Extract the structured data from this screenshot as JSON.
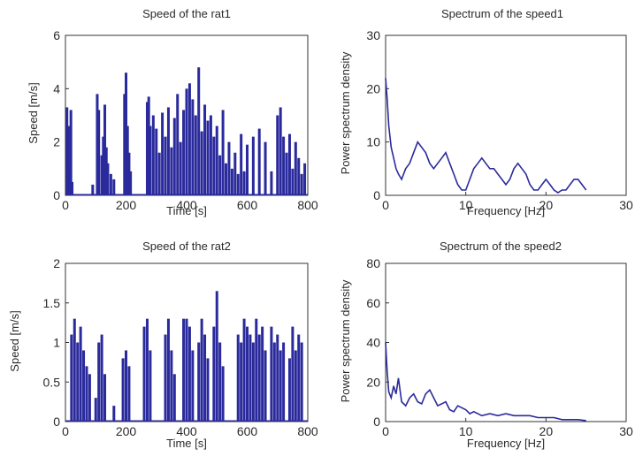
{
  "chart_data": [
    {
      "type": "bar",
      "title": "Speed of the rat1",
      "xlabel": "Time [s]",
      "ylabel": "Speed [m/s]",
      "xlim": [
        0,
        800
      ],
      "ylim": [
        0,
        6
      ],
      "xticks": [
        0,
        200,
        400,
        600,
        800
      ],
      "yticks": [
        0,
        2,
        4,
        6
      ],
      "color": "#2a2a9c",
      "series": [
        {
          "x": [
            5,
            10,
            12,
            18,
            22,
            90,
            105,
            110,
            120,
            125,
            130,
            135,
            140,
            150,
            160,
            195,
            200,
            205,
            210,
            215,
            270,
            275,
            280,
            290,
            300,
            310,
            320,
            330,
            340,
            350,
            360,
            370,
            380,
            390,
            400,
            410,
            420,
            430,
            440,
            450,
            460,
            470,
            480,
            490,
            500,
            510,
            520,
            530,
            540,
            550,
            560,
            570,
            580,
            590,
            600,
            620,
            640,
            660,
            680,
            700,
            710,
            720,
            730,
            740,
            750,
            760,
            770,
            780,
            790
          ],
          "values": [
            3.3,
            2.6,
            1.0,
            3.2,
            0.5,
            0.4,
            3.8,
            3.2,
            1.5,
            2.2,
            3.4,
            1.8,
            1.2,
            0.8,
            0.6,
            3.8,
            4.6,
            2.6,
            1.6,
            0.9,
            3.5,
            3.7,
            2.6,
            3.0,
            2.5,
            1.6,
            3.1,
            2.2,
            3.3,
            1.8,
            2.9,
            3.8,
            2.0,
            3.2,
            4.0,
            4.2,
            3.6,
            3.0,
            4.8,
            2.4,
            3.4,
            2.8,
            3.0,
            2.2,
            2.6,
            1.5,
            3.2,
            1.2,
            2.0,
            1.0,
            1.6,
            0.8,
            2.3,
            0.9,
            1.9,
            2.2,
            2.5,
            2.0,
            0.9,
            3.0,
            3.3,
            2.2,
            1.6,
            2.3,
            1.0,
            2.0,
            1.4,
            0.8,
            1.2
          ]
        }
      ]
    },
    {
      "type": "line",
      "title": "Spectrum of the speed1",
      "xlabel": "Frequency [Hz]",
      "ylabel": "Power spectrum density",
      "xlim": [
        0,
        30
      ],
      "ylim": [
        0,
        30
      ],
      "xticks": [
        0,
        10,
        20,
        30
      ],
      "yticks": [
        0,
        10,
        20,
        30
      ],
      "color": "#2a2a9c",
      "series": [
        {
          "x": [
            0,
            0.2,
            0.4,
            0.7,
            1,
            1.3,
            1.6,
            2,
            2.5,
            3,
            3.5,
            4,
            4.5,
            5,
            5.5,
            6,
            6.5,
            7,
            7.5,
            8,
            8.5,
            9,
            9.5,
            10,
            10.5,
            11,
            11.5,
            12,
            12.5,
            13,
            13.5,
            14,
            14.5,
            15,
            15.5,
            16,
            16.5,
            17,
            17.5,
            18,
            18.5,
            19,
            19.5,
            20,
            20.5,
            21,
            21.5,
            22,
            22.5,
            23,
            23.5,
            24,
            24.5,
            25
          ],
          "values": [
            22,
            18,
            13,
            9,
            7,
            5,
            4,
            3,
            5,
            6,
            8,
            10,
            9,
            8,
            6,
            5,
            6,
            7,
            8,
            6,
            4,
            2,
            1,
            1,
            3,
            5,
            6,
            7,
            6,
            5,
            5,
            4,
            3,
            2,
            3,
            5,
            6,
            5,
            4,
            2,
            1,
            1,
            2,
            3,
            2,
            1,
            0.5,
            1,
            1,
            2,
            3,
            3,
            2,
            1
          ]
        }
      ]
    },
    {
      "type": "bar",
      "title": "Speed of the rat2",
      "xlabel": "Time [s]",
      "ylabel": "Speed [m/s]",
      "xlim": [
        0,
        800
      ],
      "ylim": [
        0,
        2
      ],
      "xticks": [
        0,
        200,
        400,
        600,
        800
      ],
      "yticks": [
        0,
        0.5,
        1,
        1.5,
        2
      ],
      "color": "#2a2a9c",
      "series": [
        {
          "x": [
            20,
            30,
            40,
            50,
            60,
            70,
            80,
            100,
            110,
            120,
            130,
            160,
            190,
            200,
            210,
            260,
            270,
            280,
            330,
            340,
            350,
            360,
            390,
            400,
            410,
            420,
            440,
            450,
            460,
            470,
            490,
            500,
            510,
            520,
            570,
            580,
            590,
            600,
            610,
            620,
            630,
            640,
            650,
            660,
            680,
            690,
            700,
            710,
            720,
            740,
            750,
            760,
            770,
            780
          ],
          "values": [
            1.1,
            1.3,
            1.0,
            1.2,
            0.9,
            0.7,
            0.6,
            0.3,
            1.0,
            1.1,
            0.6,
            0.2,
            0.8,
            0.9,
            0.7,
            1.2,
            1.3,
            0.9,
            1.1,
            1.3,
            0.9,
            0.6,
            1.3,
            1.3,
            1.2,
            0.9,
            1.0,
            1.3,
            1.1,
            0.8,
            1.2,
            1.65,
            1.0,
            0.7,
            1.1,
            1.0,
            1.3,
            1.2,
            1.1,
            1.0,
            1.3,
            1.1,
            1.2,
            0.9,
            1.2,
            1.0,
            1.1,
            0.9,
            1.0,
            0.8,
            1.2,
            0.9,
            1.1,
            1.0
          ]
        }
      ]
    },
    {
      "type": "line",
      "title": "Spectrum of the speed2",
      "xlabel": "Frequency [Hz]",
      "ylabel": "Power spectrum density",
      "xlim": [
        0,
        30
      ],
      "ylim": [
        0,
        80
      ],
      "xticks": [
        0,
        10,
        20,
        30
      ],
      "yticks": [
        0,
        20,
        40,
        60,
        80
      ],
      "color": "#2a2a9c",
      "series": [
        {
          "x": [
            0,
            0.2,
            0.4,
            0.7,
            1,
            1.3,
            1.6,
            2,
            2.5,
            3,
            3.5,
            4,
            4.5,
            5,
            5.5,
            6,
            6.5,
            7,
            7.5,
            8,
            8.5,
            9,
            9.5,
            10,
            10.5,
            11,
            12,
            13,
            14,
            15,
            16,
            17,
            18,
            19,
            20,
            21,
            22,
            23,
            24,
            25
          ],
          "values": [
            40,
            25,
            15,
            12,
            18,
            14,
            22,
            10,
            8,
            12,
            14,
            10,
            9,
            14,
            16,
            12,
            8,
            9,
            10,
            6,
            5,
            8,
            7,
            6,
            4,
            5,
            3,
            4,
            3,
            4,
            3,
            3,
            3,
            2,
            2,
            2,
            1,
            1,
            1,
            0.5
          ]
        }
      ]
    }
  ]
}
